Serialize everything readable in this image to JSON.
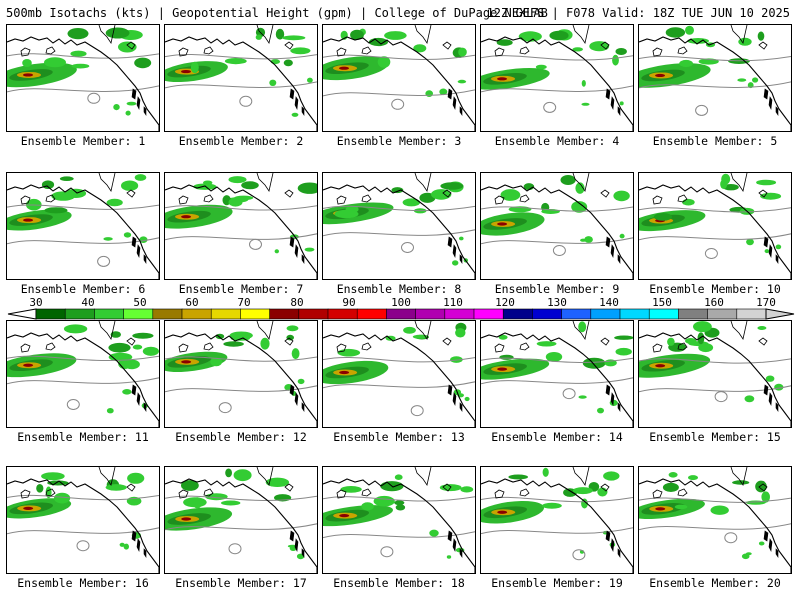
{
  "header": {
    "title": "500mb Isotachs (kts) | Geopotential Height (gpm) | College of DuPage NEXLAB",
    "run_info": "12Z GEFS | F078 Valid: 18Z TUE JUN 10 2025"
  },
  "members": [
    {
      "label": "Ensemble Member: 1"
    },
    {
      "label": "Ensemble Member: 2"
    },
    {
      "label": "Ensemble Member: 3"
    },
    {
      "label": "Ensemble Member: 4"
    },
    {
      "label": "Ensemble Member: 5"
    },
    {
      "label": "Ensemble Member: 6"
    },
    {
      "label": "Ensemble Member: 7"
    },
    {
      "label": "Ensemble Member: 8"
    },
    {
      "label": "Ensemble Member: 9"
    },
    {
      "label": "Ensemble Member: 10"
    },
    {
      "label": "Ensemble Member: 11"
    },
    {
      "label": "Ensemble Member: 12"
    },
    {
      "label": "Ensemble Member: 13"
    },
    {
      "label": "Ensemble Member: 14"
    },
    {
      "label": "Ensemble Member: 15"
    },
    {
      "label": "Ensemble Member: 16"
    },
    {
      "label": "Ensemble Member: 17"
    },
    {
      "label": "Ensemble Member: 18"
    },
    {
      "label": "Ensemble Member: 19"
    },
    {
      "label": "Ensemble Member: 20"
    }
  ],
  "colorbar": {
    "labels": [
      "30",
      "40",
      "50",
      "60",
      "70",
      "80",
      "90",
      "100",
      "110",
      "120",
      "130",
      "140",
      "150",
      "160",
      "170"
    ],
    "colors": [
      "#006400",
      "#1e9e1e",
      "#33cc33",
      "#66ff33",
      "#997a00",
      "#c9a400",
      "#e6d800",
      "#ffff00",
      "#8b0000",
      "#b00000",
      "#d40000",
      "#ff0000",
      "#8b008b",
      "#b000b0",
      "#d400d4",
      "#ff00ff",
      "#00008b",
      "#0000d0",
      "#1e62ff",
      "#00a0ff",
      "#00d8ff",
      "#00ffff",
      "#808080",
      "#a9a9a9",
      "#d3d3d3"
    ]
  }
}
